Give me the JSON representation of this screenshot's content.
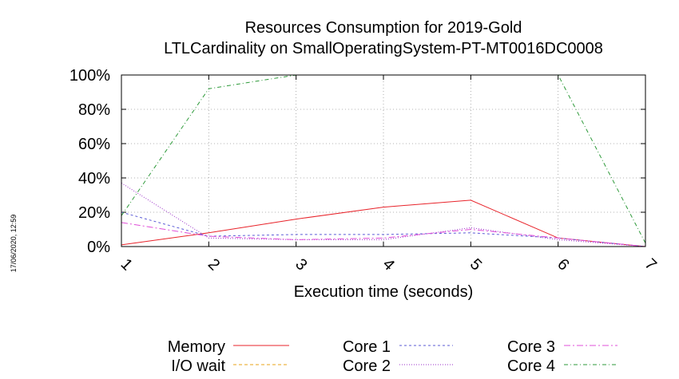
{
  "chart_data": {
    "type": "line",
    "title": "Resources Consumption for 2019-Gold",
    "subtitle": "LTLCardinality on SmallOperatingSystem-PT-MT0016DC0008",
    "xlabel": "Execution time (seconds)",
    "ylabel": "",
    "timestamp": "17/06/2020, 12:59",
    "x": [
      1,
      2,
      3,
      4,
      5,
      6,
      7
    ],
    "xlim": [
      1,
      7
    ],
    "ylim": [
      0,
      100
    ],
    "x_ticks": [
      "1",
      "2",
      "3",
      "4",
      "5",
      "6",
      "7"
    ],
    "y_ticks": [
      "0%",
      "20%",
      "40%",
      "60%",
      "80%",
      "100%"
    ],
    "y_tick_values": [
      0,
      20,
      40,
      60,
      80,
      100
    ],
    "grid": true,
    "legend_position": "bottom",
    "series": [
      {
        "name": "Memory",
        "color": "#e8232a",
        "dash": "",
        "values": [
          1,
          8,
          16,
          23,
          27,
          5,
          0
        ]
      },
      {
        "name": "I/O wait",
        "color": "#e8a317",
        "dash": "4,3",
        "values": [
          0,
          0,
          0,
          0,
          0,
          0,
          0
        ]
      },
      {
        "name": "Core 1",
        "color": "#5b5bd6",
        "dash": "3,3",
        "values": [
          20,
          6,
          7,
          7,
          8,
          5,
          0
        ]
      },
      {
        "name": "Core 2",
        "color": "#9b30c9",
        "dash": "1,2",
        "values": [
          37,
          5,
          4,
          4,
          11,
          4,
          0
        ]
      },
      {
        "name": "Core 3",
        "color": "#e050d8",
        "dash": "8,3,2,3",
        "values": [
          14,
          6,
          4,
          5,
          10,
          5,
          0
        ]
      },
      {
        "name": "Core 4",
        "color": "#2e9a3a",
        "dash": "5,3,1,3",
        "values": [
          18,
          92,
          100,
          100,
          100,
          100,
          2
        ]
      }
    ]
  }
}
